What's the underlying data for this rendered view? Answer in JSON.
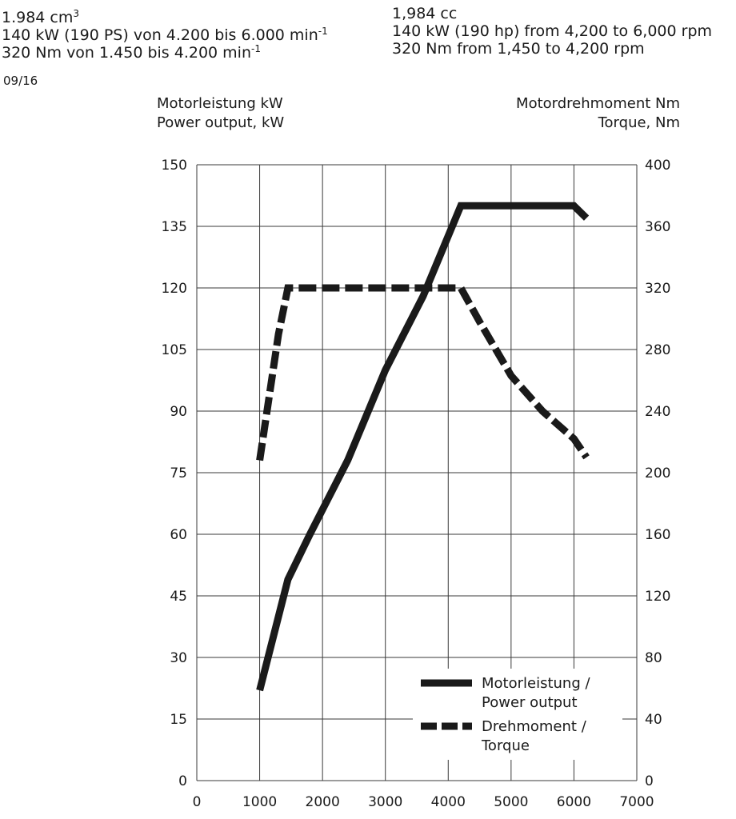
{
  "specs": {
    "de": {
      "displacement": "1.984 cm",
      "displacement_sup": "3",
      "power": "140 kW (190 PS) von 4.200 bis 6.000 min",
      "power_sup": "-1",
      "torque": "320 Nm von 1.450 bis 4.200 min",
      "torque_sup": "-1"
    },
    "en": {
      "displacement": "1,984 cc",
      "power": "140 kW (190 hp) from 4,200 to 6,000 rpm",
      "torque": "320 Nm from 1,450 to 4,200 rpm"
    },
    "date": "09/16"
  },
  "axis_titles": {
    "left_line1": "Motorleistung kW",
    "left_line2": "Power output, kW",
    "right_line1": "Motordrehmoment Nm",
    "right_line2": "Torque, Nm"
  },
  "chart_data": {
    "type": "line",
    "x_ticks": [
      0,
      1000,
      2000,
      3000,
      4000,
      5000,
      6000,
      7000
    ],
    "xlim": [
      0,
      7000
    ],
    "y_left_ticks": [
      0,
      15,
      30,
      45,
      60,
      75,
      90,
      105,
      120,
      135,
      150
    ],
    "y_left_lim": [
      0,
      150
    ],
    "y_right_ticks": [
      0,
      40,
      80,
      120,
      160,
      200,
      240,
      280,
      320,
      360,
      400
    ],
    "y_right_lim": [
      0,
      400
    ],
    "grid": true,
    "legend_position": "bottom-right",
    "series": [
      {
        "name": "Motorleistung / Power output",
        "axis": "left",
        "style": "solid",
        "color": "#1a1a1a",
        "points": [
          [
            1000,
            22
          ],
          [
            1450,
            49
          ],
          [
            1800,
            60
          ],
          [
            2400,
            78
          ],
          [
            3000,
            100
          ],
          [
            3600,
            118
          ],
          [
            4200,
            140
          ],
          [
            6000,
            140
          ],
          [
            6200,
            137
          ]
        ]
      },
      {
        "name": "Drehmoment / Torque",
        "axis": "right",
        "style": "dashed",
        "color": "#1a1a1a",
        "points": [
          [
            1000,
            208
          ],
          [
            1300,
            290
          ],
          [
            1450,
            320
          ],
          [
            4200,
            320
          ],
          [
            4500,
            298
          ],
          [
            5000,
            263
          ],
          [
            5500,
            240
          ],
          [
            6000,
            222
          ],
          [
            6200,
            210
          ]
        ]
      }
    ],
    "legend": {
      "power_line1": "Motorleistung /",
      "power_line2": "Power output",
      "torque_line1": "Drehmoment /",
      "torque_line2": "Torque"
    }
  }
}
